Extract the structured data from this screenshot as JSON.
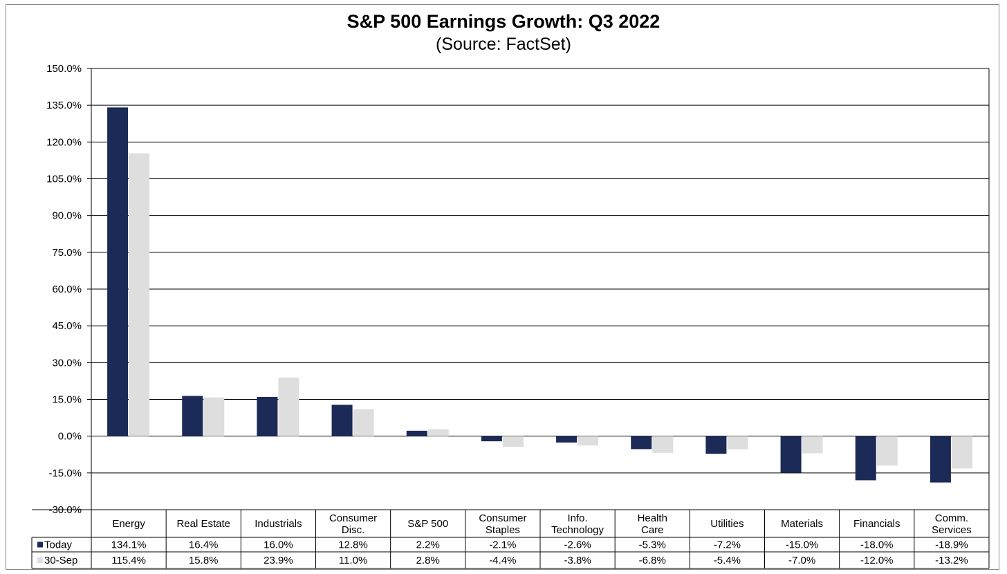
{
  "chart_data": {
    "type": "bar",
    "title": "S&P 500 Earnings Growth: Q3 2022",
    "subtitle": "(Source: FactSet)",
    "categories": [
      [
        "Energy"
      ],
      [
        "Real Estate"
      ],
      [
        "Industrials"
      ],
      [
        "Consumer",
        "Disc."
      ],
      [
        "S&P 500"
      ],
      [
        "Consumer",
        "Staples"
      ],
      [
        "Info.",
        "Technology"
      ],
      [
        "Health",
        "Care"
      ],
      [
        "Utilities"
      ],
      [
        "Materials"
      ],
      [
        "Financials"
      ],
      [
        "Comm.",
        "Services"
      ]
    ],
    "series": [
      {
        "name": "Today",
        "color": "#1b2a57",
        "values": [
          134.1,
          16.4,
          16.0,
          12.8,
          2.2,
          -2.1,
          -2.6,
          -5.3,
          -7.2,
          -15.0,
          -18.0,
          -18.9
        ],
        "labels": [
          "134.1%",
          "16.4%",
          "16.0%",
          "12.8%",
          "2.2%",
          "-2.1%",
          "-2.6%",
          "-5.3%",
          "-7.2%",
          "-15.0%",
          "-18.0%",
          "-18.9%"
        ]
      },
      {
        "name": "30-Sep",
        "color": "#dedede",
        "values": [
          115.4,
          15.8,
          23.9,
          11.0,
          2.8,
          -4.4,
          -3.8,
          -6.8,
          -5.4,
          -7.0,
          -12.0,
          -13.2
        ],
        "labels": [
          "115.4%",
          "15.8%",
          "23.9%",
          "11.0%",
          "2.8%",
          "-4.4%",
          "-3.8%",
          "-6.8%",
          "-5.4%",
          "-7.0%",
          "-12.0%",
          "-13.2%"
        ]
      }
    ],
    "ylim": [
      -30,
      150
    ],
    "yticks": [
      150,
      135,
      120,
      105,
      90,
      75,
      60,
      45,
      30,
      15,
      0,
      -15,
      -30
    ],
    "ytick_labels": [
      "150.0%",
      "135.0%",
      "120.0%",
      "105.0%",
      "90.0%",
      "75.0%",
      "60.0%",
      "45.0%",
      "30.0%",
      "15.0%",
      "0.0%",
      "-15.0%",
      "-30.0%"
    ],
    "grid": true,
    "legend": "data-table"
  }
}
